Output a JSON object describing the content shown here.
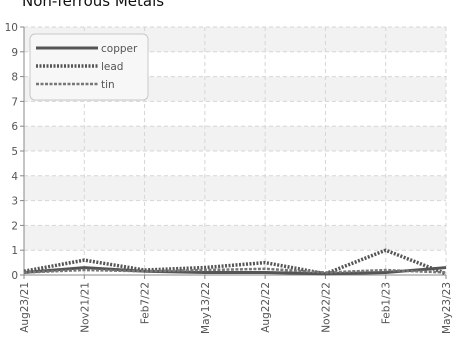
{
  "chart_data": {
    "type": "line",
    "title": "Non-ferrous Metals",
    "xlabel": "",
    "ylabel": "",
    "x": [
      "Aug23/21",
      "Nov21/21",
      "Feb7/22",
      "May13/22",
      "Aug22/22",
      "Nov22/22",
      "Feb1/23",
      "May23/23"
    ],
    "ylim": [
      0,
      10
    ],
    "yticks": [
      0,
      1,
      2,
      3,
      4,
      5,
      6,
      7,
      8,
      9,
      10
    ],
    "grid": true,
    "legend_position": "top-left",
    "series": [
      {
        "name": "copper",
        "style": "solid",
        "color": "#555555",
        "values": [
          0.1,
          0.3,
          0.15,
          0.1,
          0.1,
          0.05,
          0.1,
          0.3
        ]
      },
      {
        "name": "lead",
        "style": "dotted",
        "color": "#555555",
        "values": [
          0.15,
          0.6,
          0.2,
          0.3,
          0.5,
          0.05,
          1.0,
          0.05
        ]
      },
      {
        "name": "tin",
        "style": "dashed",
        "color": "#777777",
        "values": [
          0.1,
          0.2,
          0.15,
          0.2,
          0.25,
          0.1,
          0.2,
          0.1
        ]
      }
    ]
  }
}
